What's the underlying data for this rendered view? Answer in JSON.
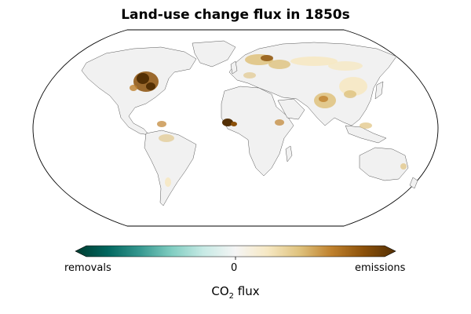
{
  "title": "Land-use change flux in 1850s",
  "map": {
    "projection": "Robinson",
    "background": "#ffffff",
    "land_color": "#f2f2f2",
    "coast_color": "#333333",
    "ocean_fill": "none"
  },
  "colorbar": {
    "left_label": "removals",
    "center_label": "0",
    "right_label": "emissions",
    "axis_label_main": "CO",
    "axis_label_sub": "2",
    "axis_label_tail": " flux",
    "colors": [
      "#003c30",
      "#01665e",
      "#35978f",
      "#80cdc1",
      "#c7eae5",
      "#f5f5f5",
      "#f6e8c3",
      "#dfc27d",
      "#bf812d",
      "#8c510a",
      "#543005"
    ]
  }
}
